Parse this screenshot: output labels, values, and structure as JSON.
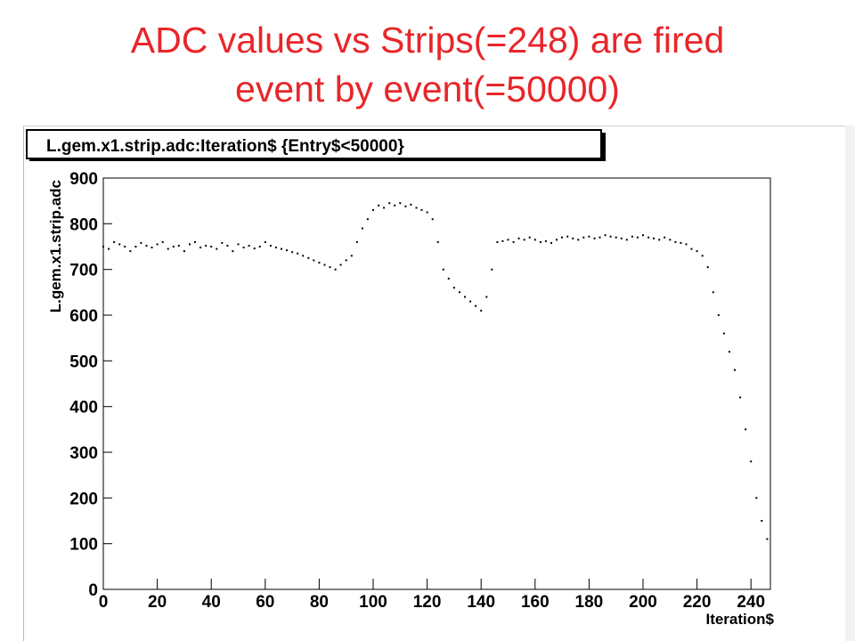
{
  "slide": {
    "title_line1": "ADC values vs Strips(=248) are fired",
    "title_line2": "event by event(=50000)",
    "title_color": "#e8262a"
  },
  "chart_data": {
    "type": "scatter",
    "title": "L.gem.x1.strip.adc:Iteration$ {Entry$<50000}",
    "xlabel": "Iteration$",
    "ylabel": "L.gem.x1.strip.adc",
    "xlim": [
      0,
      248
    ],
    "ylim": [
      0,
      900
    ],
    "xticks": [
      "0",
      "20",
      "40",
      "60",
      "80",
      "100",
      "120",
      "140",
      "160",
      "180",
      "200",
      "220",
      "240"
    ],
    "yticks": [
      "0",
      "100",
      "200",
      "300",
      "400",
      "500",
      "600",
      "700",
      "800",
      "900"
    ],
    "grid": false,
    "legend": "none",
    "marker_color": "#000000",
    "x": [
      0,
      2,
      4,
      6,
      8,
      10,
      12,
      14,
      16,
      18,
      20,
      22,
      24,
      26,
      28,
      30,
      32,
      34,
      36,
      38,
      40,
      42,
      44,
      46,
      48,
      50,
      52,
      54,
      56,
      58,
      60,
      62,
      64,
      66,
      68,
      70,
      72,
      74,
      76,
      78,
      80,
      82,
      84,
      86,
      88,
      90,
      92,
      94,
      96,
      98,
      100,
      102,
      104,
      106,
      108,
      110,
      112,
      114,
      116,
      118,
      120,
      122,
      124,
      126,
      128,
      130,
      132,
      134,
      136,
      138,
      140,
      142,
      144,
      146,
      148,
      150,
      152,
      154,
      156,
      158,
      160,
      162,
      164,
      166,
      168,
      170,
      172,
      174,
      176,
      178,
      180,
      182,
      184,
      186,
      188,
      190,
      192,
      194,
      196,
      198,
      200,
      202,
      204,
      206,
      208,
      210,
      212,
      214,
      216,
      218,
      220,
      222,
      224,
      226,
      228,
      230,
      232,
      234,
      236,
      238,
      240,
      242,
      244,
      246
    ],
    "y": [
      750,
      745,
      760,
      755,
      750,
      740,
      750,
      758,
      752,
      748,
      755,
      760,
      745,
      750,
      752,
      740,
      755,
      760,
      748,
      752,
      750,
      745,
      758,
      752,
      740,
      755,
      748,
      752,
      746,
      750,
      760,
      752,
      748,
      745,
      742,
      738,
      735,
      730,
      725,
      720,
      715,
      710,
      705,
      700,
      710,
      720,
      730,
      760,
      790,
      810,
      830,
      840,
      835,
      845,
      840,
      845,
      838,
      842,
      835,
      830,
      825,
      810,
      760,
      700,
      680,
      660,
      650,
      640,
      630,
      620,
      610,
      640,
      700,
      760,
      762,
      765,
      760,
      768,
      765,
      770,
      765,
      760,
      762,
      758,
      765,
      770,
      772,
      768,
      765,
      770,
      772,
      768,
      770,
      775,
      772,
      770,
      768,
      765,
      772,
      770,
      775,
      770,
      768,
      765,
      770,
      765,
      760,
      758,
      755,
      745,
      740,
      730,
      705,
      650,
      600,
      560,
      520,
      480,
      420,
      350,
      280,
      200,
      150,
      110
    ]
  }
}
